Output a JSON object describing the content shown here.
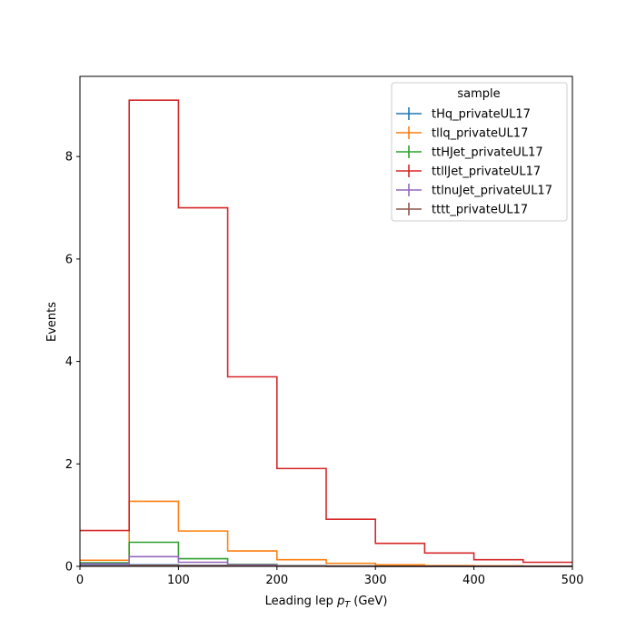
{
  "chart_data": {
    "type": "line",
    "drawstyle": "step-histogram",
    "xlabel": "Leading lep",
    "xlabel_symbol": "p",
    "xlabel_subscript": "T",
    "xlabel_unit": "(GeV)",
    "ylabel": "Events",
    "xlim": [
      0,
      500
    ],
    "ylim": [
      0,
      9.565
    ],
    "xticks": [
      0,
      100,
      200,
      300,
      400,
      500
    ],
    "xtick_labels": [
      "0",
      "100",
      "200",
      "300",
      "400",
      "500"
    ],
    "yticks": [
      0,
      2,
      4,
      6,
      8
    ],
    "ytick_labels": [
      "0",
      "2",
      "4",
      "6",
      "8"
    ],
    "bin_edges": [
      0,
      50,
      100,
      150,
      200,
      250,
      300,
      350,
      400,
      450,
      500
    ],
    "grid": false,
    "legend": {
      "title": "sample",
      "placement": "top-right"
    },
    "series": [
      {
        "name": "tHq_privateUL17",
        "color": "#1f77b4",
        "values": [
          0.02,
          0.03,
          0.02,
          0.01,
          0.005,
          0.003,
          0.002,
          0.001,
          0.001,
          0.0005
        ]
      },
      {
        "name": "tllq_privateUL17",
        "color": "#ff7f0e",
        "values": [
          0.12,
          1.27,
          0.69,
          0.3,
          0.13,
          0.06,
          0.03,
          0.015,
          0.01,
          0.005
        ]
      },
      {
        "name": "ttHJet_privateUL17",
        "color": "#2ca02c",
        "values": [
          0.07,
          0.47,
          0.15,
          0.04,
          0.015,
          0.007,
          0.004,
          0.002,
          0.001,
          0.0005
        ]
      },
      {
        "name": "ttllJet_privateUL17",
        "color": "#d62728",
        "values": [
          0.7,
          9.1,
          7.0,
          3.7,
          1.91,
          0.92,
          0.45,
          0.26,
          0.13,
          0.08
        ]
      },
      {
        "name": "ttlnuJet_privateUL17",
        "color": "#9467bd",
        "values": [
          0.05,
          0.19,
          0.08,
          0.03,
          0.01,
          0.005,
          0.003,
          0.002,
          0.001,
          0.0005
        ]
      },
      {
        "name": "tttt_privateUL17",
        "color": "#8c564b",
        "values": [
          0.01,
          0.02,
          0.015,
          0.008,
          0.004,
          0.002,
          0.001,
          0.0005,
          0.0003,
          0.0002
        ]
      }
    ]
  }
}
